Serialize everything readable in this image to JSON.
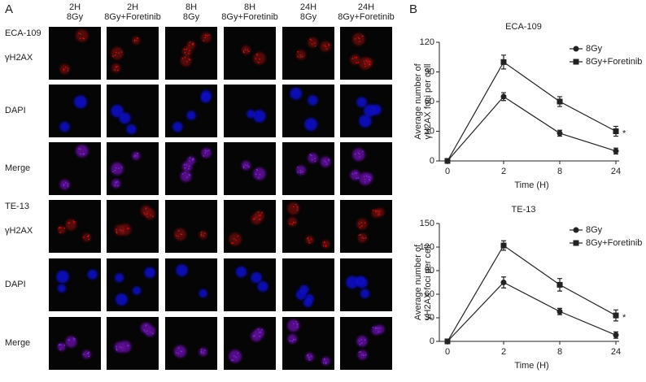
{
  "panel_a": {
    "label": "A",
    "columns": [
      {
        "time": "2H",
        "treatment": "8Gy"
      },
      {
        "time": "2H",
        "treatment": "8Gy+Foretinib"
      },
      {
        "time": "8H",
        "treatment": "8Gy"
      },
      {
        "time": "8H",
        "treatment": "8Gy+Foretinib"
      },
      {
        "time": "24H",
        "treatment": "8Gy"
      },
      {
        "time": "24H",
        "treatment": "8Gy+Foretinib"
      }
    ],
    "groups": [
      {
        "cell_line": "ECA-109",
        "rows": [
          "γH2AX",
          "DAPI",
          "Merge"
        ]
      },
      {
        "cell_line": "TE-13",
        "rows": [
          "γH2AX",
          "DAPI",
          "Merge"
        ]
      }
    ]
  },
  "panel_b": {
    "label": "B"
  },
  "chart_data": [
    {
      "type": "line",
      "title": "ECA-109",
      "xlabel": "Time (H)",
      "ylabel": [
        "Average number of",
        "γH2AX foci per cell"
      ],
      "categories": [
        "0",
        "2",
        "8",
        "24"
      ],
      "ylim": [
        0,
        120
      ],
      "yticks": [
        0,
        30,
        60,
        90,
        120
      ],
      "legend": "upper right",
      "annotation": "*",
      "series": [
        {
          "name": "8Gy",
          "color": "#222222",
          "marker": "circle",
          "values": [
            0,
            65,
            28,
            10
          ],
          "errors": [
            0,
            4,
            3,
            3
          ]
        },
        {
          "name": "8Gy+Foretinib",
          "color": "#222222",
          "marker": "square",
          "values": [
            0,
            100,
            60,
            30
          ],
          "errors": [
            0,
            7,
            5,
            5
          ]
        }
      ]
    },
    {
      "type": "line",
      "title": "TE-13",
      "xlabel": "Time (H)",
      "ylabel": [
        "Average number of",
        "γH2AX foci per cell"
      ],
      "categories": [
        "0",
        "2",
        "8",
        "24"
      ],
      "ylim": [
        0,
        150
      ],
      "yticks": [
        0,
        30,
        60,
        90,
        120,
        150
      ],
      "legend": "upper right",
      "annotation": "*",
      "series": [
        {
          "name": "8Gy",
          "color": "#222222",
          "marker": "circle",
          "values": [
            0,
            75,
            38,
            8
          ],
          "errors": [
            0,
            7,
            4,
            4
          ]
        },
        {
          "name": "8Gy+Foretinib",
          "color": "#222222",
          "marker": "square",
          "values": [
            0,
            122,
            72,
            33
          ],
          "errors": [
            0,
            6,
            8,
            7
          ]
        }
      ]
    }
  ]
}
